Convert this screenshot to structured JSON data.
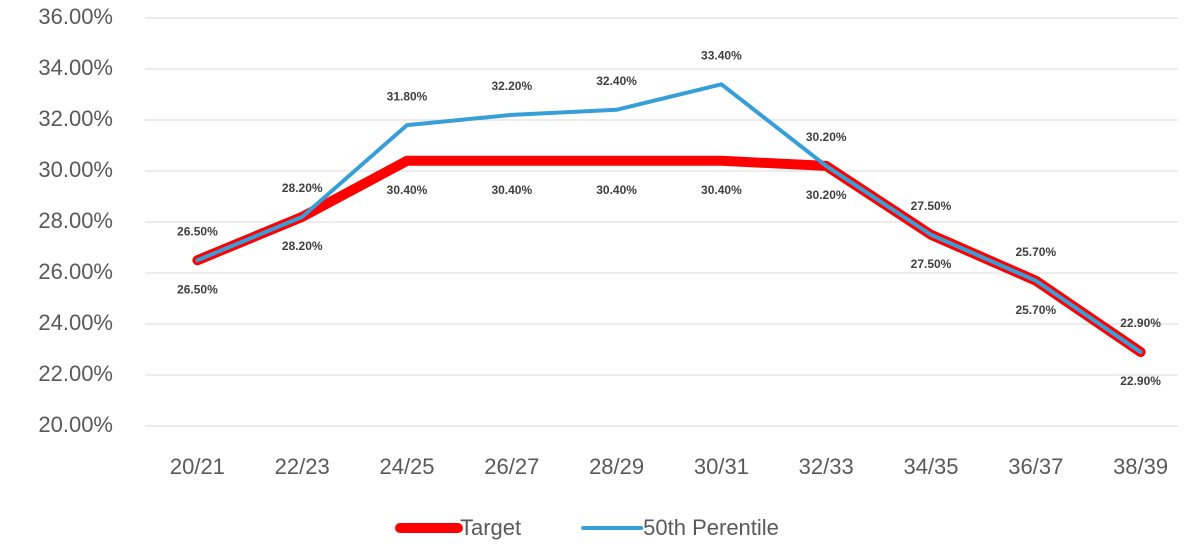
{
  "chart_data": {
    "type": "line",
    "categories": [
      "20/21",
      "22/23",
      "24/25",
      "26/27",
      "28/29",
      "30/31",
      "32/33",
      "34/35",
      "36/37",
      "38/39"
    ],
    "series": [
      {
        "name": "Target",
        "color": "#ff0000",
        "values": [
          26.5,
          28.2,
          30.4,
          30.4,
          30.4,
          30.4,
          30.2,
          27.5,
          25.7,
          22.9
        ],
        "value_labels": [
          "26.50%",
          "28.20%",
          "30.40%",
          "30.40%",
          "30.40%",
          "30.40%",
          "30.20%",
          "27.50%",
          "25.70%",
          "22.90%"
        ]
      },
      {
        "name": "50th Perentile",
        "color": "#379fd8",
        "values": [
          26.5,
          28.2,
          31.8,
          32.2,
          32.4,
          33.4,
          30.2,
          27.5,
          25.7,
          22.9
        ],
        "value_labels": [
          "26.50%",
          "28.20%",
          "31.80%",
          "32.20%",
          "32.40%",
          "33.40%",
          "30.20%",
          "27.50%",
          "25.70%",
          "22.90%"
        ]
      }
    ],
    "ylim": [
      20,
      36
    ],
    "yticks": [
      {
        "value": 20,
        "label": "20.00%"
      },
      {
        "value": 22,
        "label": "22.00%"
      },
      {
        "value": 24,
        "label": "24.00%"
      },
      {
        "value": 26,
        "label": "26.00%"
      },
      {
        "value": 28,
        "label": "28.00%"
      },
      {
        "value": 30,
        "label": "30.00%"
      },
      {
        "value": 32,
        "label": "32.00%"
      },
      {
        "value": 34,
        "label": "34.00%"
      },
      {
        "value": 36,
        "label": "36.00%"
      }
    ],
    "grid": true,
    "legend": "bottom"
  }
}
